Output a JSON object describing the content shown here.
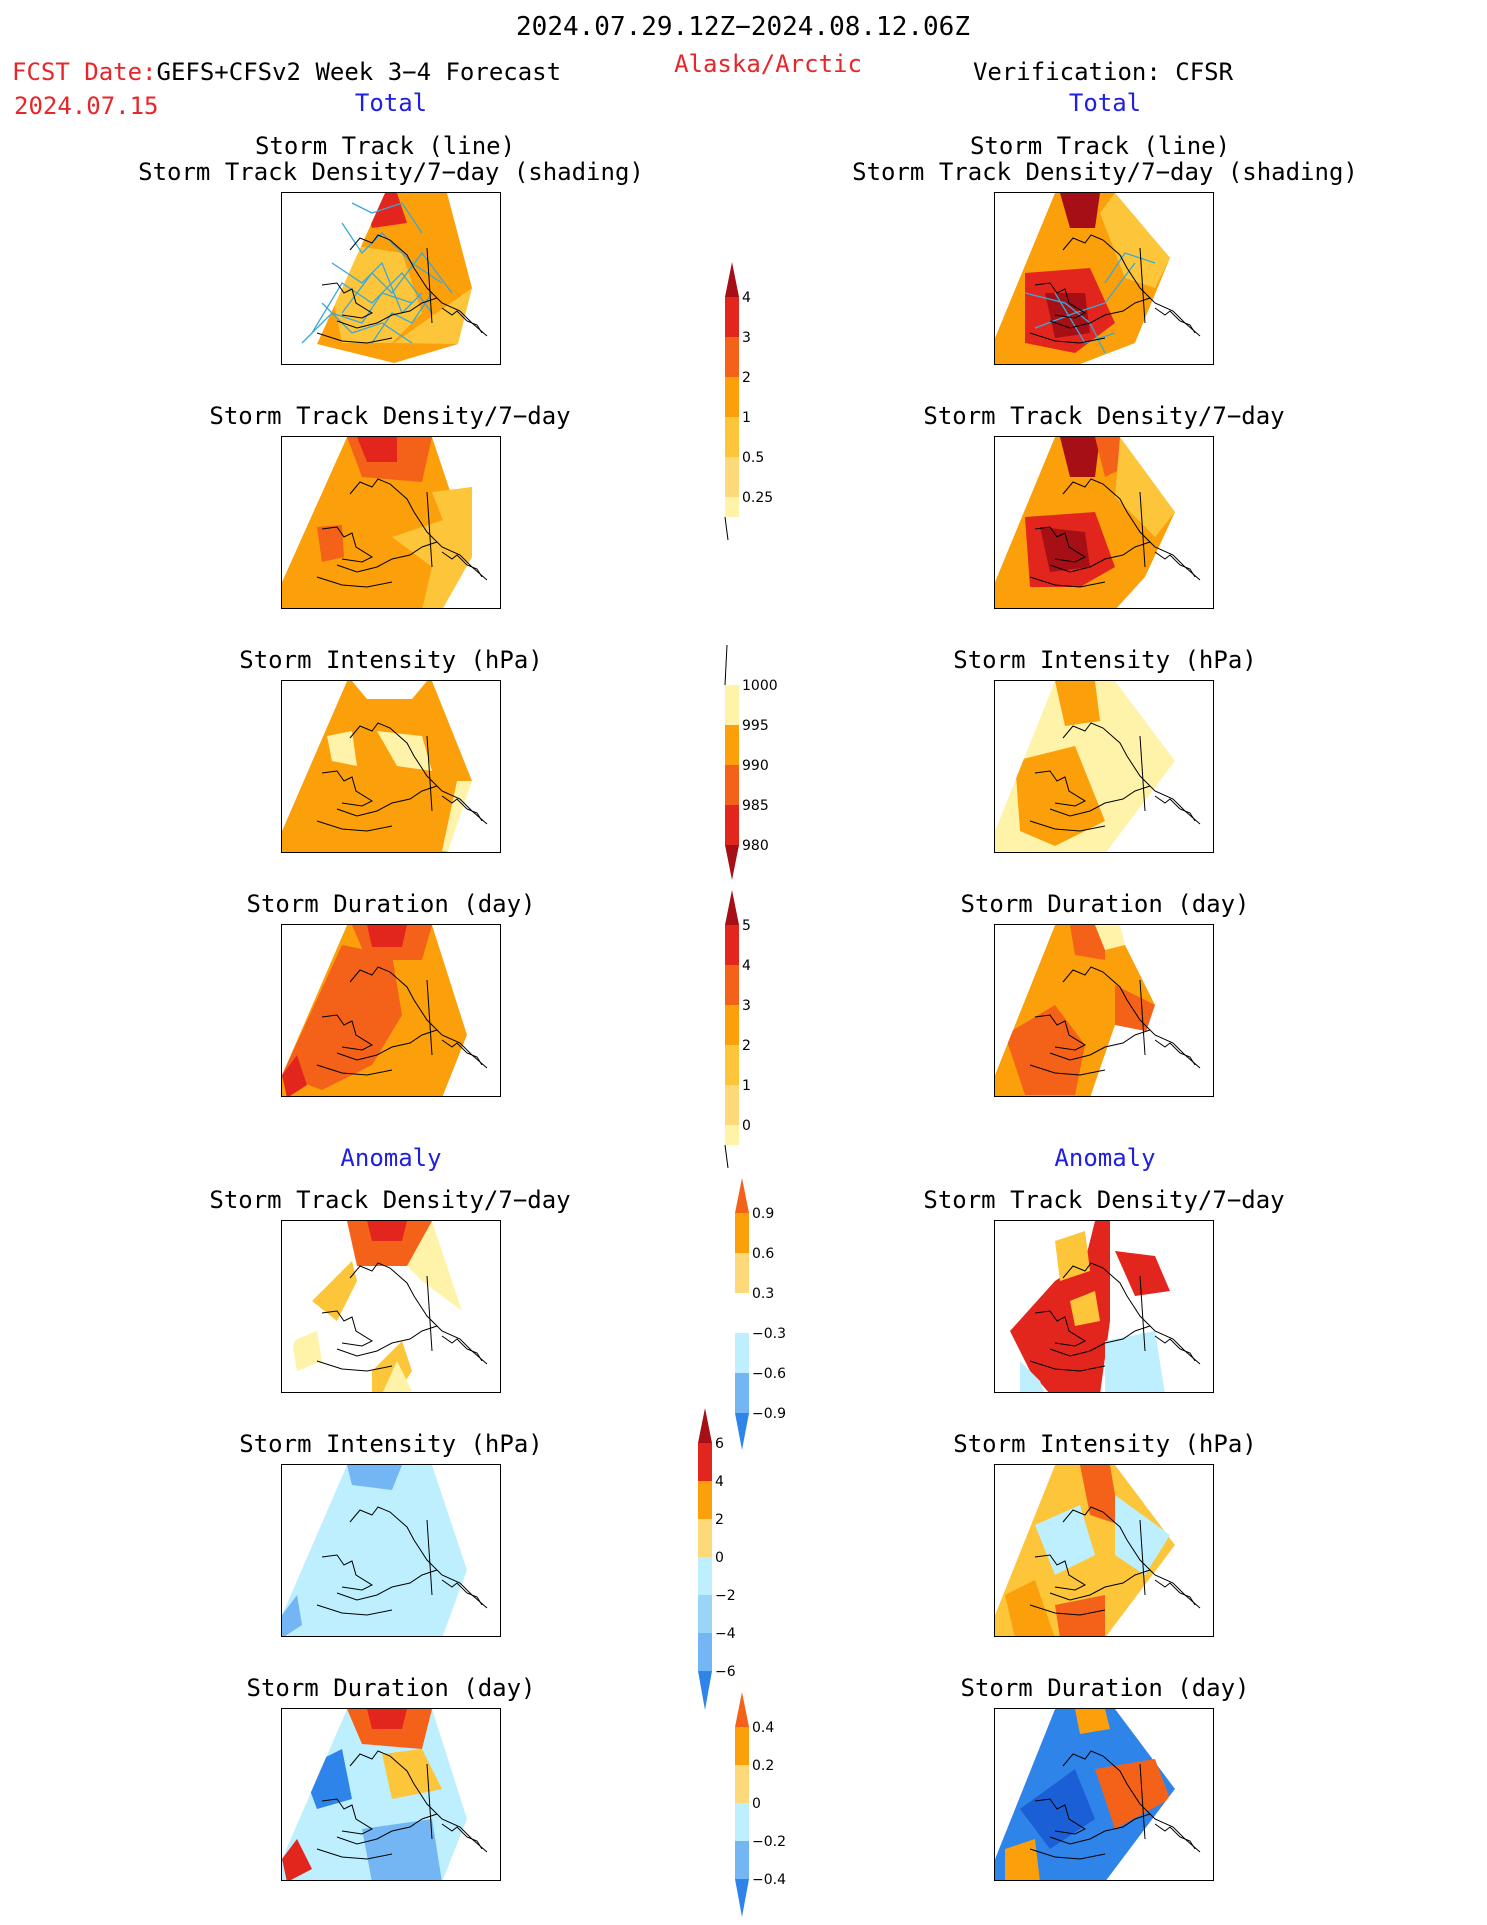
{
  "header": {
    "period": "2024.07.29.12Z−2024.08.12.06Z",
    "fcst_prefix": "FCST Date:",
    "fcst_model": "GEFS+CFSv2 Week 3−4 Forecast",
    "fcst_date": "2024.07.15",
    "region": "Alaska/Arctic",
    "verification": "Verification: CFSR"
  },
  "sections": {
    "total_left": "Total",
    "total_right": "Total",
    "anomaly_left": "Anomaly",
    "anomaly_right": "Anomaly"
  },
  "titles": {
    "track_line": "Storm Track (line)",
    "track_shading": "Storm Track Density/7−day (shading)",
    "density": "Storm Track Density/7−day",
    "intensity": "Storm Intensity (hPa)",
    "duration": "Storm Duration (day)"
  },
  "colorbars": {
    "density_total": [
      "4",
      "3",
      "2",
      "1",
      "0.5",
      "0.25"
    ],
    "intensity_total": [
      "1000",
      "995",
      "990",
      "985",
      "980"
    ],
    "duration_total": [
      "5",
      "4",
      "3",
      "2",
      "1",
      "0"
    ],
    "density_anom": [
      "0.9",
      "0.6",
      "0.3",
      "−0.3",
      "−0.6",
      "−0.9"
    ],
    "intensity_anom": [
      "6",
      "4",
      "2",
      "0",
      "−2",
      "−4",
      "−6"
    ],
    "duration_anom": [
      "0.4",
      "0.2",
      "0",
      "−0.2",
      "−0.4"
    ]
  },
  "palette": {
    "dark_red": "#a50f15",
    "red": "#e3261d",
    "orange_red": "#f4621a",
    "orange": "#fb9f0a",
    "light_orange": "#fcc53a",
    "pale_yellow": "#fff3aa",
    "pale_blue": "#bdefff",
    "mid_blue": "#74b6f4",
    "blue": "#2f84ea",
    "dark_blue": "#1b5fd6",
    "track_line": "#3aa8d8"
  }
}
